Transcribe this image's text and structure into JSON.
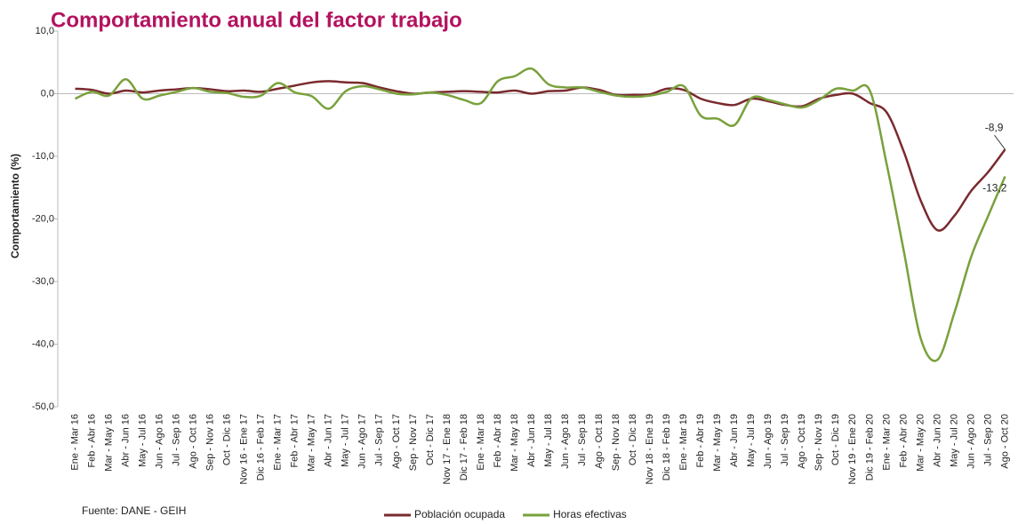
{
  "chart_data": {
    "type": "line",
    "title": "Comportamiento anual del factor trabajo",
    "y_label": "Comportamiento (%)",
    "source": "Fuente: DANE - GEIH",
    "categories": [
      "Ene - Mar 16",
      "Feb - Abr 16",
      "Mar - May 16",
      "Abr - Jun 16",
      "May - Jul 16",
      "Jun - Ago 16",
      "Jul - Sep 16",
      "Ago - Oct 16",
      "Sep - Nov 16",
      "Oct - Dic 16",
      "Nov 16 - Ene 17",
      "Dic 16 - Feb 17",
      "Ene - Mar 17",
      "Feb - Abr 17",
      "Mar - May 17",
      "Abr - Jun 17",
      "May - Jul 17",
      "Jun - Ago 17",
      "Jul - Sep 17",
      "Ago - Oct 17",
      "Sep - Nov 17",
      "Oct - Dic 17",
      "Nov 17 - Ene 18",
      "Dic 17 - Feb 18",
      "Ene - Mar 18",
      "Feb - Abr 18",
      "Mar - May 18",
      "Abr - Jun 18",
      "May - Jul 18",
      "Jun - Ago 18",
      "Jul - Sep 18",
      "Ago - Oct 18",
      "Sep - Nov 18",
      "Oct - Dic 18",
      "Nov 18 - Ene 19",
      "Dic 18 - Feb 19",
      "Ene - Mar 19",
      "Feb - Abr 19",
      "Mar - May 19",
      "Abr - Jun 19",
      "May - Jul 19",
      "Jun - Ago 19",
      "Jul - Sep 19",
      "Ago - Oct 19",
      "Sep - Nov 19",
      "Oct - Dic 19",
      "Nov 19 - Ene 20",
      "Dic 19 - Feb 20",
      "Ene - Mar 20",
      "Feb - Abr 20",
      "Mar - May 20",
      "Abr - Jun 20",
      "May - Jul 20",
      "Jun - Ago 20",
      "Jul - Sep 20",
      "Ago - Oct 20"
    ],
    "series": [
      {
        "name": "Población ocupada",
        "color": "#7a2a2e",
        "values": [
          0.8,
          0.6,
          0,
          0.5,
          0.2,
          0.5,
          0.7,
          0.9,
          0.7,
          0.4,
          0.5,
          0.3,
          0.8,
          1.3,
          1.8,
          2.0,
          1.8,
          1.7,
          1.0,
          0.4,
          0,
          0.2,
          0.3,
          0.4,
          0.3,
          0.2,
          0.5,
          0,
          0.4,
          0.5,
          1.0,
          0.6,
          -0.2,
          -0.2,
          -0.1,
          0.8,
          0.6,
          -0.8,
          -1.5,
          -1.8,
          -0.8,
          -1.2,
          -1.8,
          -2.0,
          -0.8,
          -0.2,
          0,
          -1.5,
          -3.0,
          -9.2,
          -17,
          -21.8,
          -19.5,
          -15.5,
          -12.5,
          -8.9
        ],
        "value_labels": [
          null,
          null,
          null,
          null,
          null,
          null,
          null,
          null,
          null,
          null,
          null,
          null,
          null,
          null,
          null,
          null,
          null,
          null,
          null,
          null,
          null,
          null,
          null,
          null,
          null,
          null,
          null,
          null,
          null,
          null,
          null,
          null,
          null,
          null,
          null,
          null,
          null,
          null,
          null,
          null,
          null,
          null,
          null,
          null,
          null,
          null,
          null,
          null,
          null,
          null,
          null,
          null,
          null,
          null,
          null,
          "-8,9"
        ]
      },
      {
        "name": "Horas efectivas",
        "color": "#79a13c",
        "values": [
          -0.8,
          0.3,
          -0.3,
          2.3,
          -0.8,
          -0.3,
          0.3,
          0.9,
          0.3,
          0.1,
          -0.5,
          -0.3,
          1.7,
          0.2,
          -0.4,
          -2.4,
          0.4,
          1.2,
          0.7,
          0,
          -0.1,
          0.2,
          -0.2,
          -1.0,
          -1.5,
          2.0,
          2.8,
          4.0,
          1.5,
          1.0,
          1.0,
          0.3,
          -0.3,
          -0.5,
          -0.3,
          0.3,
          1.2,
          -3.5,
          -4.0,
          -5.0,
          -0.7,
          -1.0,
          -1.7,
          -2.2,
          -1.0,
          0.8,
          0.5,
          0.5,
          -11.3,
          -25,
          -39,
          -42.5,
          -35,
          -26,
          -19.5,
          -13.2
        ],
        "value_labels": [
          null,
          null,
          null,
          null,
          null,
          null,
          null,
          null,
          null,
          null,
          null,
          null,
          null,
          null,
          null,
          null,
          null,
          null,
          null,
          null,
          null,
          null,
          null,
          null,
          null,
          null,
          null,
          null,
          null,
          null,
          null,
          null,
          null,
          null,
          null,
          null,
          null,
          null,
          null,
          null,
          null,
          null,
          null,
          null,
          null,
          null,
          null,
          null,
          null,
          null,
          null,
          null,
          null,
          null,
          null,
          "-13,2"
        ]
      }
    ],
    "ylim": [
      -50,
      10
    ],
    "yticks": [
      {
        "value": -50,
        "label": "-50,0"
      },
      {
        "value": -40,
        "label": "-40,0"
      },
      {
        "value": -30,
        "label": "-30,0"
      },
      {
        "value": -20,
        "label": "-20,0"
      },
      {
        "value": -10,
        "label": "-10,0"
      },
      {
        "value": 0,
        "label": "0,0"
      },
      {
        "value": 10,
        "label": "10,0"
      }
    ],
    "legend": "bottom"
  }
}
